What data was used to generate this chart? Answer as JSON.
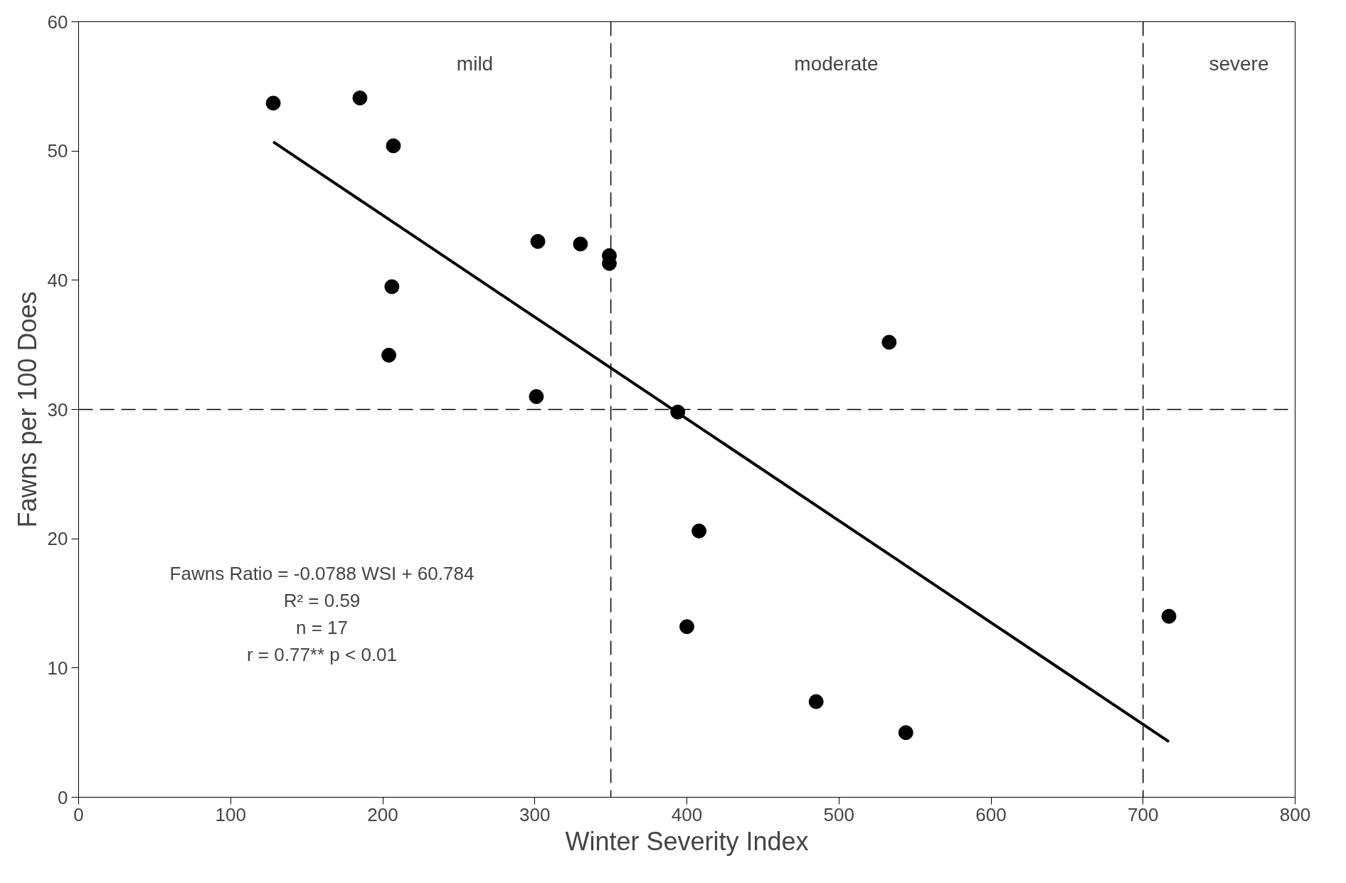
{
  "chart_data": {
    "type": "scatter",
    "xlabel": "Winter Severity Index",
    "ylabel": "Fawns per 100 Does",
    "xlim": [
      0,
      800
    ],
    "ylim": [
      0,
      60
    ],
    "xticks": [
      0,
      100,
      200,
      300,
      400,
      500,
      600,
      700,
      800
    ],
    "yticks": [
      0,
      10,
      20,
      30,
      40,
      50,
      60
    ],
    "grid": false,
    "marker": "circle",
    "series": [
      {
        "color": "#000000",
        "x": [
          128,
          185,
          207,
          206,
          204,
          302,
          301,
          330,
          349,
          349,
          394,
          408,
          400,
          533,
          485,
          544,
          717
        ],
        "values": [
          53.7,
          54.1,
          50.4,
          39.5,
          34.2,
          43.0,
          31.0,
          42.8,
          41.9,
          41.3,
          29.8,
          20.6,
          13.2,
          35.2,
          7.4,
          5.0,
          14.0
        ]
      },
      {
        "type": "line",
        "color": "#000000",
        "line_style": "solid",
        "marker": "none",
        "x": [
          128,
          717
        ],
        "values": [
          50.7,
          4.3
        ]
      }
    ],
    "ref_lines": [
      {
        "axis": "x",
        "value": 350,
        "line_style": "dashed",
        "color": "#000000"
      },
      {
        "axis": "x",
        "value": 700,
        "line_style": "dashed",
        "color": "#000000"
      },
      {
        "axis": "y",
        "value": 30,
        "line_style": "dashed",
        "color": "#000000"
      }
    ],
    "annotations": [
      "mild",
      "moderate",
      "severe",
      "Fawns Ratio = -0.0788 WSI + 60.784",
      "R² = 0.59",
      "n = 17",
      "r = 0.77** p < 0.01"
    ]
  }
}
